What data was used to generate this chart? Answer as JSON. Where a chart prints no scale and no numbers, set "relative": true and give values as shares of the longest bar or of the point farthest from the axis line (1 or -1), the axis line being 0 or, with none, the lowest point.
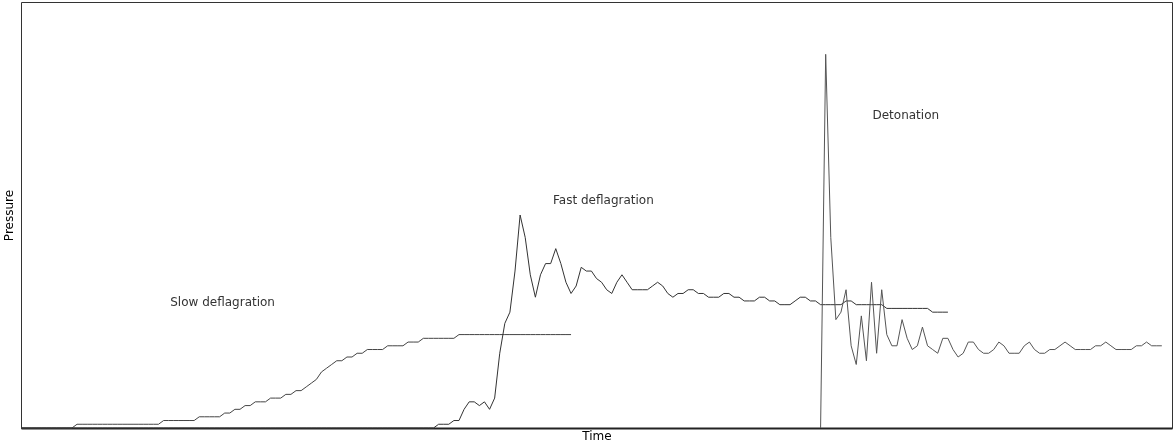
{
  "chart_data": {
    "type": "line",
    "relative": true,
    "xlabel": "Time",
    "ylabel": "Pressure",
    "tick_labels": false,
    "annotations": [
      "Slow deflagration",
      "Fast deflagration",
      "Detonation"
    ],
    "categories": [
      null,
      null,
      null,
      null,
      null,
      null,
      null,
      null,
      null,
      null,
      null,
      null,
      null,
      null,
      null,
      null,
      null,
      null,
      null,
      null,
      null,
      null,
      null,
      null,
      null,
      null,
      null,
      null,
      null,
      null,
      null,
      null,
      null,
      null,
      null,
      null,
      null,
      null,
      null,
      null,
      null,
      null,
      null,
      null,
      null,
      null,
      null,
      null,
      null,
      null,
      null,
      null,
      null,
      null,
      null,
      null,
      null,
      null,
      null,
      null,
      null,
      null,
      null,
      null,
      null,
      null,
      null,
      null,
      null,
      null,
      null,
      null,
      null,
      null,
      null,
      null,
      null,
      null,
      null,
      null,
      null,
      null,
      null,
      null,
      null,
      null,
      null,
      null,
      null,
      null,
      null,
      null,
      null,
      null,
      null,
      null,
      null,
      null,
      null,
      null,
      null,
      null,
      null,
      null,
      null,
      null,
      null,
      null,
      null,
      null,
      null,
      null,
      null,
      null,
      null,
      null,
      null,
      null,
      null,
      null,
      null,
      null,
      null,
      null,
      null,
      null,
      null,
      null,
      null,
      null,
      null,
      null,
      null,
      null,
      null,
      null,
      null,
      null,
      null,
      null,
      null,
      null,
      null,
      null,
      null,
      null,
      null,
      null,
      null,
      null,
      null,
      null,
      null,
      null,
      null,
      null,
      null,
      null,
      null,
      null,
      null,
      null,
      null,
      null,
      null,
      null,
      null,
      null,
      null,
      null,
      null,
      null,
      null,
      null,
      null,
      null,
      null,
      null,
      null,
      null,
      null,
      null,
      null,
      null,
      null,
      null,
      null,
      null,
      null,
      null,
      null,
      null,
      null,
      null,
      null,
      null,
      null,
      null,
      null,
      null,
      null,
      null,
      null,
      null,
      null,
      null,
      null,
      null,
      null,
      null,
      null,
      null,
      null,
      null,
      null,
      null,
      null,
      null,
      null,
      null,
      null,
      null,
      null,
      null,
      null,
      null,
      null
    ],
    "series": [
      {
        "color": "#444444",
        "values": [
          0,
          0,
          0,
          0,
          0,
          0,
          0,
          0,
          0,
          0,
          0,
          0.01,
          0.01,
          0.01,
          0.01,
          0.01,
          0.01,
          0.01,
          0.01,
          0.01,
          0.01,
          0.01,
          0.01,
          0.01,
          0.01,
          0.01,
          0.01,
          0.01,
          0.02,
          0.02,
          0.02,
          0.02,
          0.02,
          0.02,
          0.02,
          0.03,
          0.03,
          0.03,
          0.03,
          0.03,
          0.04,
          0.04,
          0.05,
          0.05,
          0.06,
          0.06,
          0.07,
          0.07,
          0.07,
          0.08,
          0.08,
          0.08,
          0.09,
          0.09,
          0.1,
          0.1,
          0.11,
          0.12,
          0.13,
          0.15,
          0.16,
          0.17,
          0.18,
          0.18,
          0.19,
          0.19,
          0.2,
          0.2,
          0.21,
          0.21,
          0.21,
          0.21,
          0.22,
          0.22,
          0.22,
          0.22,
          0.23,
          0.23,
          0.23,
          0.24,
          0.24,
          0.24,
          0.24,
          0.24,
          0.24,
          0.24,
          0.25,
          0.25,
          0.25,
          0.25,
          0.25,
          0.25,
          0.25,
          0.25,
          0.25,
          0.25,
          0.25,
          0.25,
          0.25,
          0.25,
          0.25,
          0.25,
          0.25,
          0.25,
          0.25,
          0.25,
          0.25,
          0.25,
          0.25,
          null,
          null,
          null,
          null,
          null,
          null,
          null,
          null,
          null,
          null,
          null,
          null,
          null,
          null,
          null,
          null,
          null,
          null,
          null,
          null,
          null,
          null,
          null,
          null,
          null,
          null,
          null,
          null,
          null,
          null,
          null,
          null,
          null,
          null,
          null,
          null,
          null,
          null,
          null,
          null,
          null,
          null,
          null,
          null,
          null,
          null,
          null,
          null,
          null,
          null,
          null,
          null,
          null,
          null,
          null,
          null,
          null,
          null,
          null,
          null,
          null,
          null,
          null,
          null,
          null,
          null,
          null,
          null,
          null,
          null,
          null,
          null,
          null,
          null,
          null,
          null,
          null,
          null,
          null,
          null,
          null,
          null,
          null,
          null,
          null,
          null,
          null,
          null,
          null,
          null,
          null,
          null,
          null,
          null,
          null,
          null,
          null,
          null,
          null,
          null,
          null,
          null,
          null,
          null,
          null,
          null,
          null,
          null,
          null,
          null,
          null,
          null,
          null,
          null,
          null,
          null,
          null,
          null
        ]
      },
      {
        "color": "#333333",
        "values": [
          0,
          0,
          0,
          0,
          0,
          0,
          0,
          0,
          0,
          0,
          0,
          0,
          0,
          0,
          0,
          0,
          0,
          0,
          0,
          0,
          0,
          0,
          0,
          0,
          0,
          0,
          0,
          0,
          0,
          0,
          0,
          0,
          0,
          0,
          0,
          0,
          0,
          0,
          0,
          0,
          0,
          0,
          0,
          0,
          0,
          0,
          0,
          0,
          0,
          0,
          0,
          0,
          0,
          0,
          0,
          0,
          0,
          0,
          0,
          0,
          0,
          0,
          0,
          0,
          0,
          0,
          0,
          0,
          0,
          0,
          0,
          0,
          0,
          0,
          0,
          0,
          0,
          0,
          0,
          0,
          0,
          0,
          0.01,
          0.01,
          0.01,
          0.02,
          0.02,
          0.05,
          0.07,
          0.07,
          0.06,
          0.07,
          0.05,
          0.08,
          0.2,
          0.28,
          0.31,
          0.42,
          0.57,
          0.51,
          0.41,
          0.35,
          0.41,
          0.44,
          0.44,
          0.48,
          0.44,
          0.39,
          0.36,
          0.38,
          0.43,
          0.42,
          0.42,
          0.4,
          0.39,
          0.37,
          0.36,
          0.39,
          0.41,
          0.39,
          0.37,
          0.37,
          0.37,
          0.37,
          0.38,
          0.39,
          0.38,
          0.36,
          0.35,
          0.36,
          0.36,
          0.37,
          0.37,
          0.36,
          0.36,
          0.35,
          0.35,
          0.35,
          0.36,
          0.36,
          0.35,
          0.35,
          0.34,
          0.34,
          0.34,
          0.35,
          0.35,
          0.34,
          0.34,
          0.33,
          0.33,
          0.33,
          0.34,
          0.35,
          0.35,
          0.34,
          0.34,
          0.33,
          0.33,
          0.33,
          0.33,
          0.33,
          0.34,
          0.34,
          0.33,
          0.33,
          0.33,
          0.33,
          0.33,
          0.33,
          0.32,
          0.32,
          0.32,
          0.32,
          0.32,
          0.32,
          0.32,
          0.32,
          0.32,
          0.31,
          0.31,
          0.31,
          0.31,
          null,
          null,
          null,
          null,
          null,
          null,
          null,
          null,
          null,
          null,
          null,
          null,
          null,
          null,
          null,
          null,
          null,
          null,
          null,
          null,
          null,
          null,
          null,
          null,
          null,
          null,
          null,
          null,
          null,
          null,
          null,
          null,
          null,
          null,
          null,
          null,
          null,
          null,
          null,
          null,
          null,
          null,
          null,
          null
        ]
      },
      {
        "color": "#555555",
        "values": [
          null,
          null,
          null,
          null,
          null,
          null,
          null,
          null,
          null,
          null,
          null,
          null,
          null,
          null,
          null,
          null,
          null,
          null,
          null,
          null,
          null,
          null,
          null,
          null,
          null,
          null,
          null,
          null,
          null,
          null,
          null,
          null,
          null,
          null,
          null,
          null,
          null,
          null,
          null,
          null,
          null,
          null,
          null,
          null,
          null,
          null,
          null,
          null,
          null,
          null,
          null,
          null,
          null,
          null,
          null,
          null,
          null,
          null,
          null,
          null,
          null,
          null,
          null,
          null,
          null,
          null,
          null,
          null,
          null,
          null,
          null,
          null,
          null,
          null,
          null,
          null,
          null,
          null,
          null,
          null,
          null,
          null,
          null,
          null,
          null,
          null,
          null,
          null,
          null,
          null,
          null,
          null,
          null,
          null,
          null,
          null,
          null,
          null,
          null,
          null,
          null,
          null,
          null,
          null,
          null,
          null,
          null,
          null,
          null,
          null,
          null,
          null,
          null,
          null,
          null,
          null,
          null,
          null,
          null,
          null,
          null,
          null,
          null,
          null,
          null,
          null,
          null,
          null,
          null,
          null,
          null,
          null,
          null,
          null,
          null,
          null,
          null,
          null,
          null,
          null,
          null,
          null,
          null,
          null,
          null,
          null,
          null,
          null,
          null,
          null,
          null,
          null,
          null,
          null,
          null,
          null,
          null,
          0,
          1,
          0.51,
          0.29,
          0.31,
          0.37,
          0.22,
          0.17,
          0.3,
          0.18,
          0.39,
          0.2,
          0.37,
          0.25,
          0.22,
          0.22,
          0.29,
          0.24,
          0.21,
          0.22,
          0.27,
          0.22,
          0.21,
          0.2,
          0.24,
          0.24,
          0.21,
          0.19,
          0.2,
          0.23,
          0.23,
          0.21,
          0.2,
          0.2,
          0.21,
          0.23,
          0.22,
          0.2,
          0.2,
          0.2,
          0.22,
          0.23,
          0.21,
          0.2,
          0.2,
          0.21,
          0.21,
          0.22,
          0.23,
          0.22,
          0.21,
          0.21,
          0.21,
          0.21,
          0.22,
          0.22,
          0.23,
          0.22,
          0.21,
          0.21,
          0.21,
          0.21,
          0.22,
          0.22,
          0.23,
          0.22,
          0.22,
          0.22,
          null,
          null
        ]
      }
    ]
  }
}
